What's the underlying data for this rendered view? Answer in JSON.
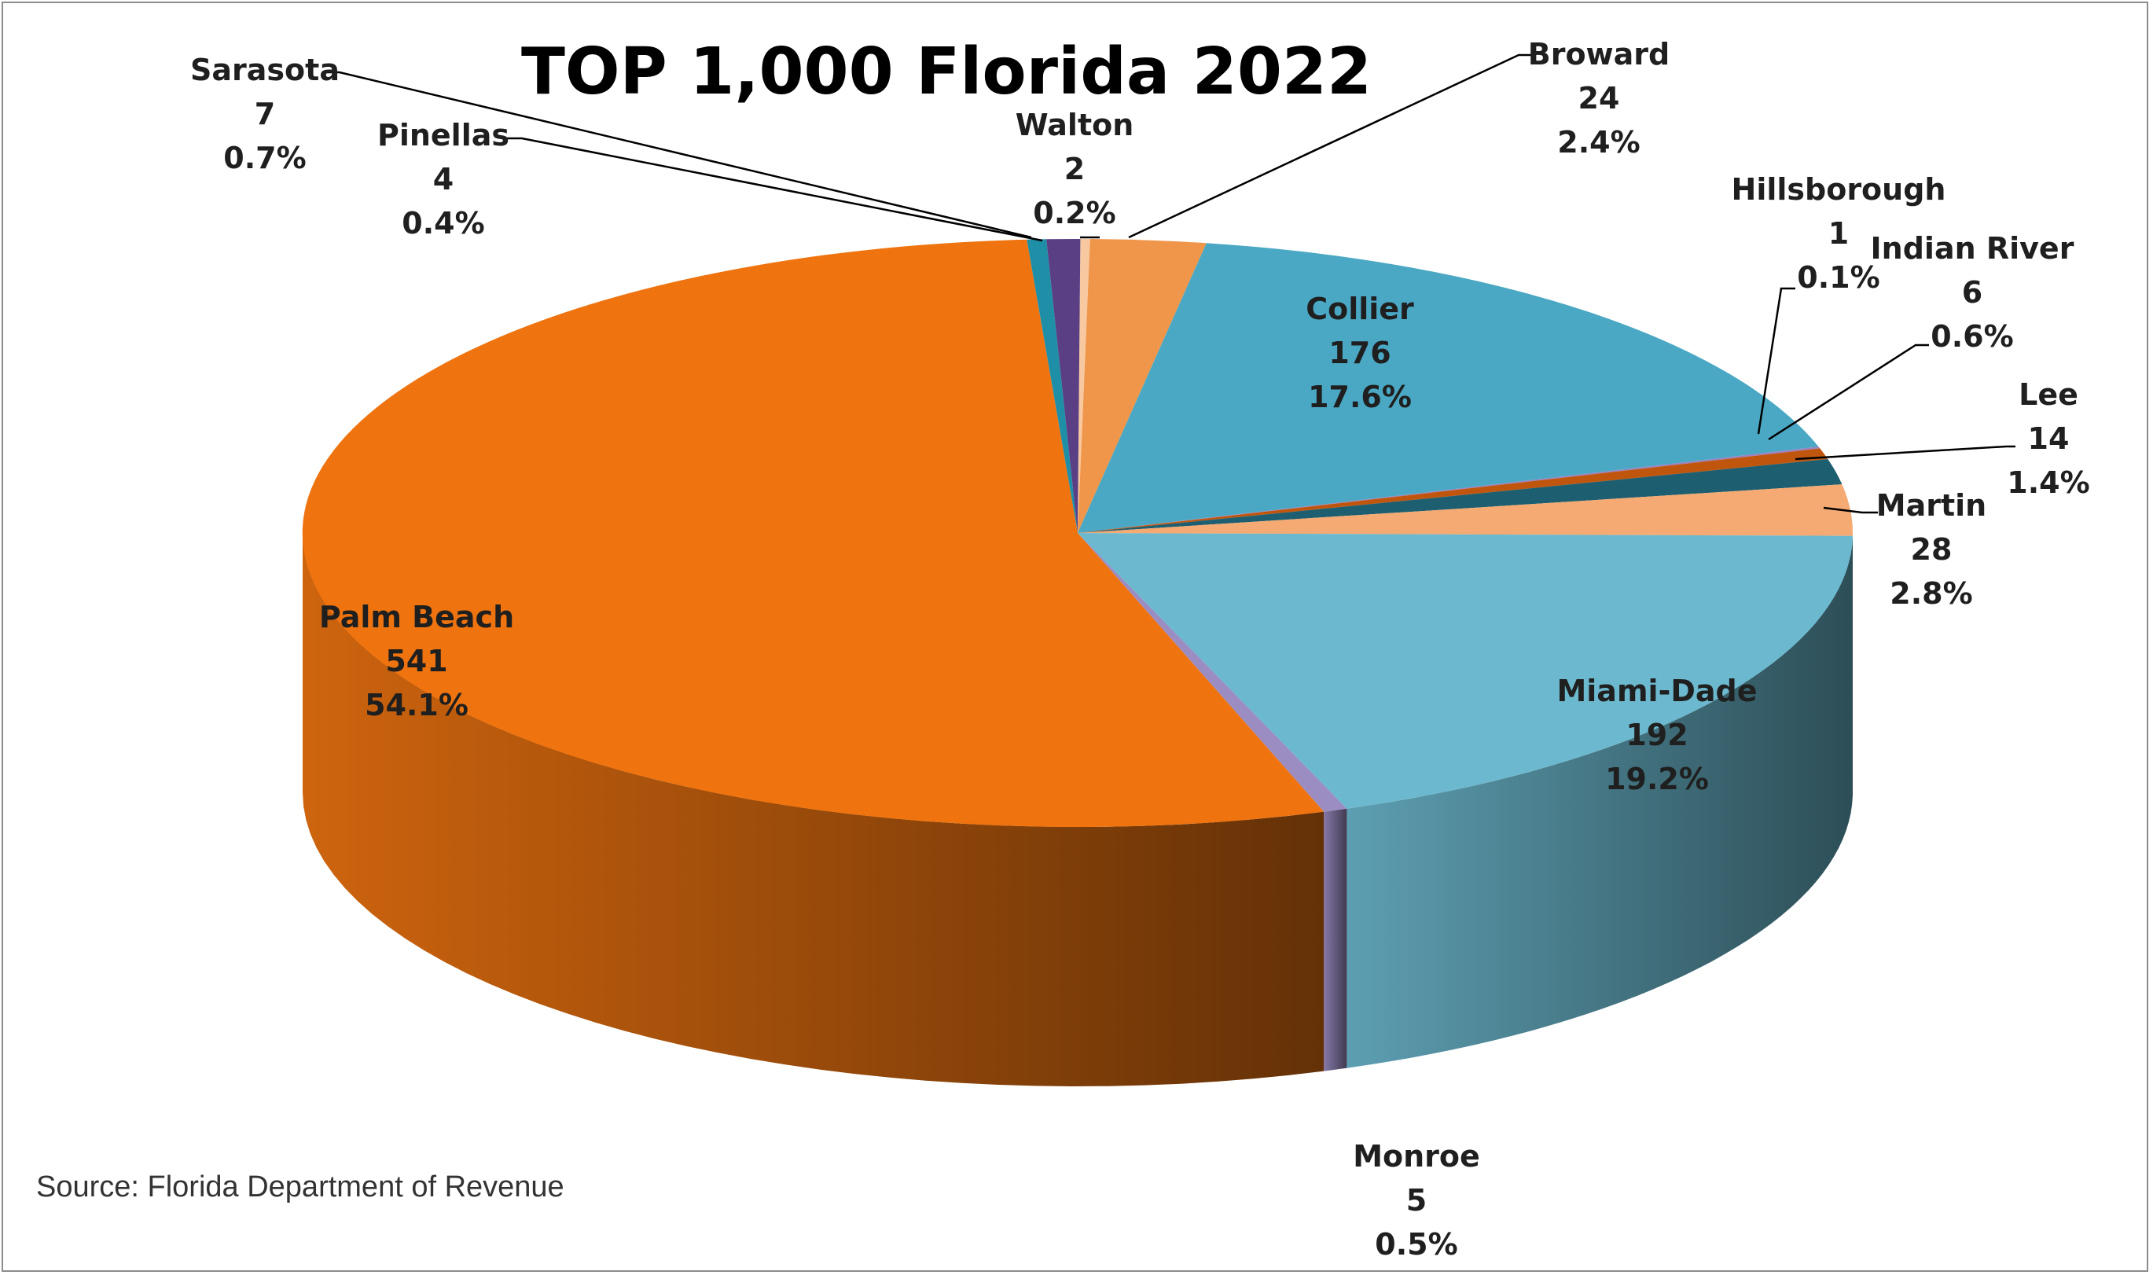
{
  "source": "Source: Florida Department of Revenue",
  "chart_data": {
    "type": "pie",
    "title": "TOP 1,000 Florida 2022",
    "start_angle_deg": 89.8,
    "slices": [
      {
        "name": "Walton",
        "value": 2,
        "percent": "0.2%",
        "color": "#f8c9a0"
      },
      {
        "name": "Broward",
        "value": 24,
        "percent": "2.4%",
        "color": "#f0964a"
      },
      {
        "name": "Collier",
        "value": 176,
        "percent": "17.6%",
        "color": "#4aa8c4"
      },
      {
        "name": "Hillsborough",
        "value": 1,
        "percent": "0.1%",
        "color": "#9b7fc0"
      },
      {
        "name": "Indian River",
        "value": 6,
        "percent": "0.6%",
        "color": "#c0560e"
      },
      {
        "name": "Lee",
        "value": 14,
        "percent": "1.4%",
        "color": "#1d5e70"
      },
      {
        "name": "Martin",
        "value": 28,
        "percent": "2.8%",
        "color": "#f4aa72"
      },
      {
        "name": "Miami-Dade",
        "value": 192,
        "percent": "19.2%",
        "color": "#6cb9cf"
      },
      {
        "name": "Monroe",
        "value": 5,
        "percent": "0.5%",
        "color": "#9b8cc2"
      },
      {
        "name": "Palm Beach",
        "value": 541,
        "percent": "54.1%",
        "color": "#ef7410"
      },
      {
        "name": "Pinellas",
        "value": 4,
        "percent": "0.4%",
        "color": "#1f8fa8"
      },
      {
        "name": "Sarasota",
        "value": 7,
        "percent": "0.7%",
        "color": "#5a3f84"
      }
    ]
  }
}
